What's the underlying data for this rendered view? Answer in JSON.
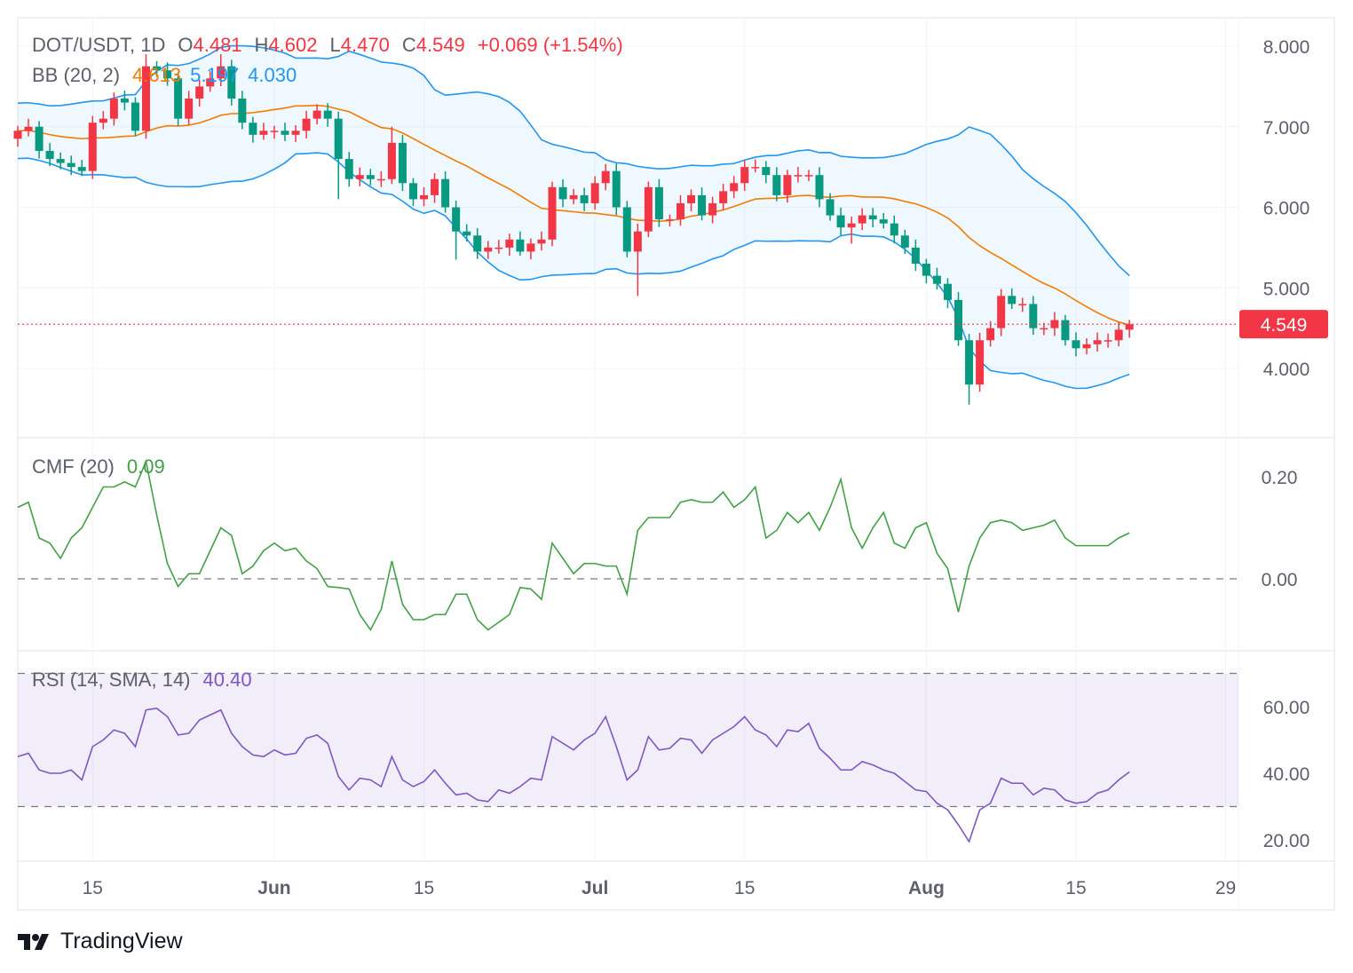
{
  "header": {
    "symbol": "DOT/USDT, 1D",
    "o_label": "O",
    "o_value": "4.481",
    "h_label": "H",
    "h_value": "4.602",
    "l_label": "L",
    "l_value": "4.470",
    "c_label": "C",
    "c_value": "4.549",
    "change": "+0.069 (+1.54%)",
    "bb_label": "BB (20, 2)",
    "bb_basis": "4.613",
    "bb_upper": "5.197",
    "bb_lower": "4.030"
  },
  "cmf_legend": {
    "label": "CMF (20)",
    "value": "0.09"
  },
  "rsi_legend": {
    "label": "RSI (14, SMA, 14)",
    "value": "40.40"
  },
  "last_price_tag": "4.549",
  "brand": "TradingView",
  "colors": {
    "up": "#f23645",
    "down": "#089981",
    "bb_basis": "#f57c00",
    "bb_band": "#2196f3",
    "cmf": "#43a047",
    "rsi": "#7e57c2"
  },
  "chart_data": [
    {
      "type": "candlestick",
      "title": "DOT/USDT, 1D",
      "x_ticks": [
        {
          "label": "15",
          "day": 7,
          "bold": false
        },
        {
          "label": "Jun",
          "day": 24,
          "bold": true
        },
        {
          "label": "15",
          "day": 38,
          "bold": false
        },
        {
          "label": "Jul",
          "day": 54,
          "bold": true
        },
        {
          "label": "15",
          "day": 68,
          "bold": false
        },
        {
          "label": "Aug",
          "day": 85,
          "bold": true
        },
        {
          "label": "15",
          "day": 99,
          "bold": false
        },
        {
          "label": "29",
          "day": 113,
          "bold": false
        }
      ],
      "y_ticks": [
        "8.000",
        "7.000",
        "6.000",
        "5.000",
        "4.000"
      ],
      "ylim": [
        3.4,
        8.4
      ],
      "first_open": 6.85,
      "close": [
        6.95,
        7.0,
        6.7,
        6.6,
        6.55,
        6.5,
        6.45,
        7.05,
        7.1,
        7.35,
        7.3,
        6.95,
        7.75,
        7.7,
        7.6,
        7.1,
        7.35,
        7.5,
        7.6,
        7.75,
        7.35,
        7.05,
        6.9,
        6.95,
        6.95,
        6.9,
        6.95,
        7.1,
        7.2,
        7.1,
        6.6,
        6.35,
        6.4,
        6.35,
        6.35,
        6.8,
        6.3,
        6.1,
        6.15,
        6.35,
        6.0,
        5.7,
        5.65,
        5.45,
        5.5,
        5.5,
        5.6,
        5.45,
        5.55,
        5.6,
        6.25,
        6.1,
        6.15,
        6.05,
        6.3,
        6.45,
        6.0,
        5.45,
        5.7,
        6.25,
        5.85,
        5.85,
        6.05,
        6.15,
        5.9,
        6.05,
        6.2,
        6.3,
        6.5,
        6.5,
        6.4,
        6.15,
        6.4,
        6.4,
        6.4,
        6.1,
        5.9,
        5.75,
        5.8,
        5.9,
        5.85,
        5.8,
        5.65,
        5.5,
        5.3,
        5.15,
        5.05,
        4.85,
        4.35,
        3.8,
        4.35,
        4.5,
        4.9,
        4.8,
        4.8,
        4.5,
        4.5,
        4.6,
        4.35,
        4.25,
        4.3,
        4.35,
        4.35,
        4.481,
        4.549
      ],
      "low_overrides": {
        "30": 6.1,
        "41": 5.35,
        "47": 5.4,
        "58": 4.9,
        "78": 5.55,
        "89": 3.55
      },
      "high_overrides": {
        "12": 7.9,
        "19": 7.9,
        "35": 7.0,
        "104": 4.602
      },
      "indicator": "Bollinger Bands (20, 2)"
    },
    {
      "type": "line",
      "title": "CMF (20)",
      "y_ticks": [
        "0.20",
        "0.00"
      ],
      "ylim": [
        -0.14,
        0.27
      ],
      "values": [
        0.14,
        0.15,
        0.08,
        0.07,
        0.04,
        0.08,
        0.1,
        0.14,
        0.18,
        0.18,
        0.19,
        0.18,
        0.23,
        0.125,
        0.03,
        -0.015,
        0.01,
        0.01,
        0.055,
        0.1,
        0.085,
        0.01,
        0.025,
        0.055,
        0.07,
        0.055,
        0.06,
        0.035,
        0.02,
        -0.015,
        -0.017,
        -0.02,
        -0.07,
        -0.1,
        -0.06,
        0.035,
        -0.05,
        -0.08,
        -0.08,
        -0.07,
        -0.07,
        -0.03,
        -0.03,
        -0.08,
        -0.1,
        -0.085,
        -0.07,
        -0.017,
        -0.02,
        -0.04,
        0.07,
        0.04,
        0.01,
        0.03,
        0.03,
        0.025,
        0.025,
        -0.03,
        0.095,
        0.12,
        0.12,
        0.12,
        0.15,
        0.155,
        0.15,
        0.15,
        0.17,
        0.14,
        0.155,
        0.18,
        0.08,
        0.095,
        0.13,
        0.11,
        0.13,
        0.095,
        0.14,
        0.195,
        0.1,
        0.06,
        0.1,
        0.13,
        0.07,
        0.06,
        0.1,
        0.11,
        0.05,
        0.02,
        -0.065,
        0.025,
        0.08,
        0.11,
        0.115,
        0.11,
        0.095,
        0.1,
        0.105,
        0.115,
        0.08,
        0.065,
        0.065,
        0.065,
        0.065,
        0.08,
        0.09
      ],
      "reference_line": 0
    },
    {
      "type": "line",
      "title": "RSI (14, SMA, 14)",
      "y_ticks": [
        "60.00",
        "40.00",
        "20.00"
      ],
      "ylim": [
        13,
        77
      ],
      "bands": [
        70,
        30
      ],
      "values": [
        45,
        46,
        41,
        40,
        40,
        41,
        38,
        48,
        50,
        53,
        52,
        48,
        59,
        59.5,
        57,
        51.5,
        52,
        56,
        57.5,
        59,
        52,
        48,
        45.5,
        45,
        47,
        45.5,
        46,
        50.5,
        51.5,
        49,
        39,
        35,
        38.5,
        38,
        36,
        45,
        38,
        36,
        37.5,
        41,
        37,
        33.5,
        34,
        32,
        31.5,
        35,
        34,
        36,
        38.5,
        38,
        51,
        49,
        47,
        50,
        52,
        57,
        48,
        38,
        41,
        51,
        47,
        47.5,
        50.5,
        50,
        46,
        50,
        52,
        54,
        57,
        53,
        51.5,
        48,
        53,
        52.5,
        55,
        47.5,
        44.5,
        41,
        41,
        43.5,
        42.5,
        41,
        40,
        37.5,
        35,
        34.5,
        31,
        29,
        24.5,
        19.5,
        29,
        31,
        38.5,
        37,
        37,
        33.5,
        35.5,
        35,
        32,
        31,
        31.5,
        34,
        35,
        38,
        40.4
      ]
    }
  ]
}
